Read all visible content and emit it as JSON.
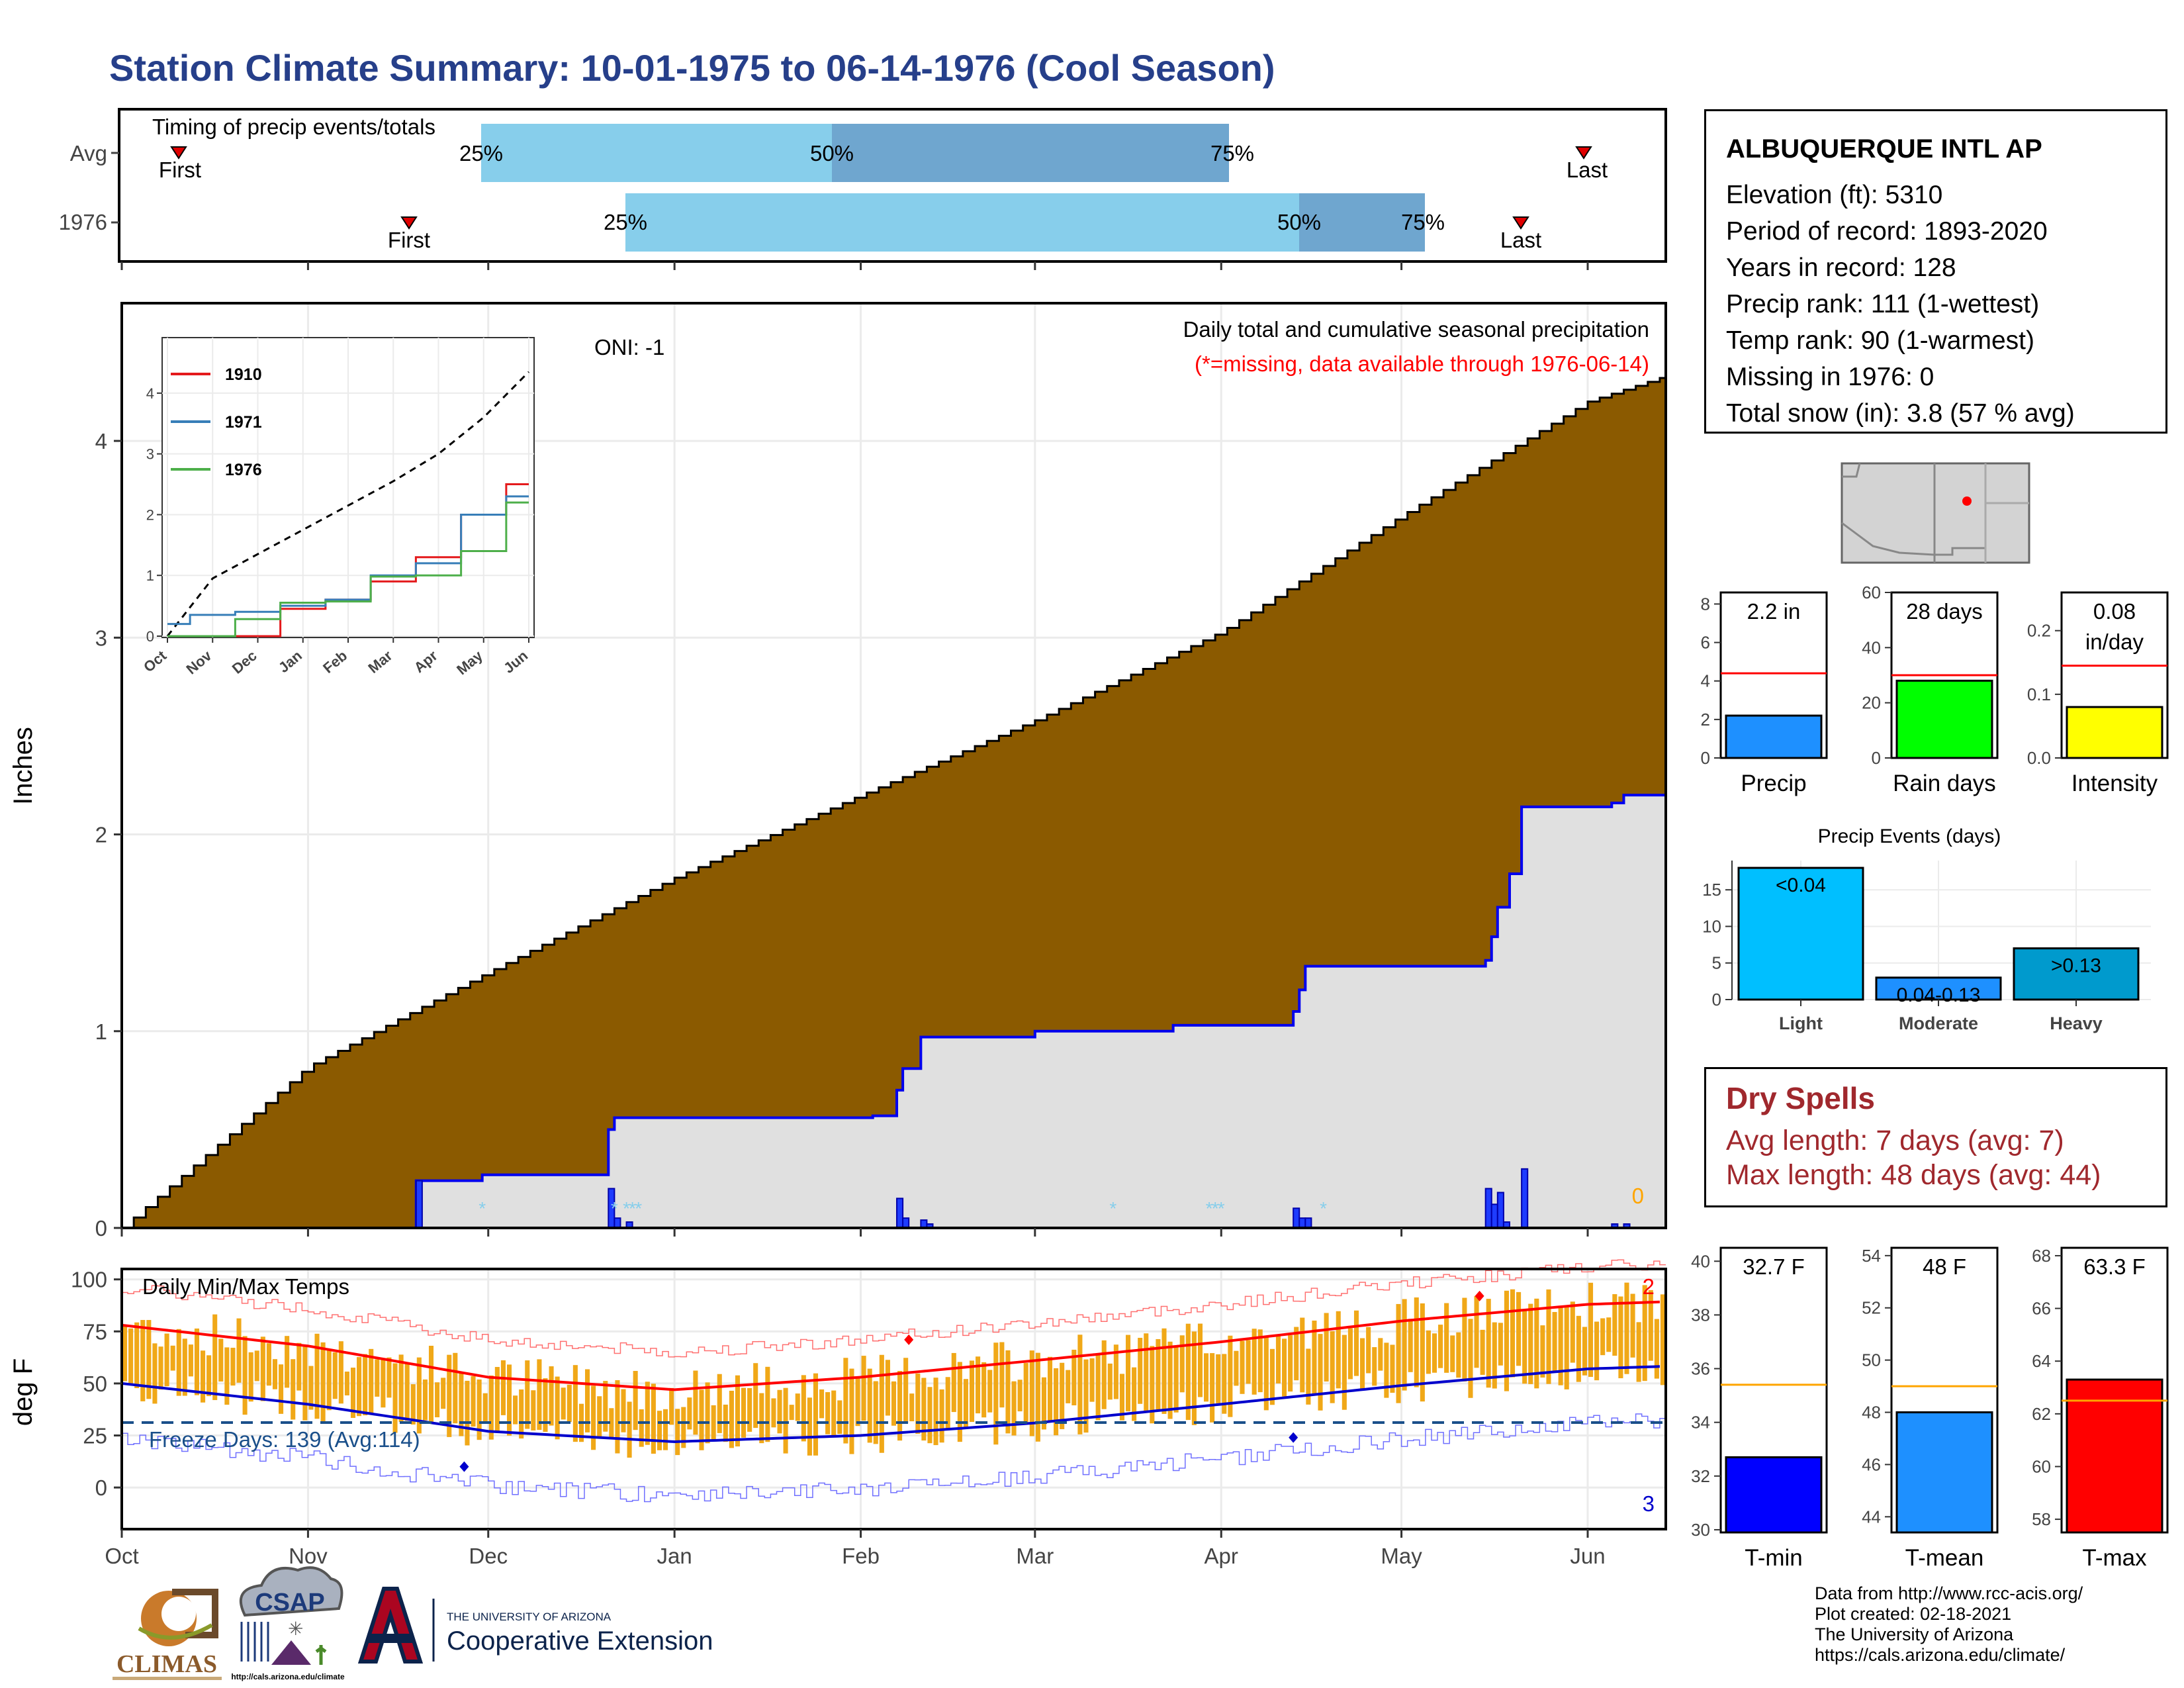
{
  "title": "Station Climate Summary: 10-01-1975 to 06-14-1976 (Cool Season)",
  "station": {
    "name": "ALBUQUERQUE INTL AP",
    "lines": [
      "Elevation (ft): 5310",
      "Period of record: 1893-2020",
      "Years in record: 128",
      "Precip rank: 111 (1-wettest)",
      "Temp rank: 90 (1-warmest)",
      "Missing in 1976: 0",
      "Total snow (in): 3.8 (57 % avg)"
    ]
  },
  "timing": {
    "title": "Timing of precip events/totals",
    "rows": [
      {
        "label": "Avg",
        "first_label": "First",
        "last_label": "Last",
        "p25": "25%",
        "p50": "50%",
        "p75": "75%"
      },
      {
        "label": "1976",
        "first_label": "First",
        "last_label": "Last",
        "p25": "25%",
        "p50": "50%",
        "p75": "75%"
      }
    ]
  },
  "main": {
    "oni": "ONI: -1",
    "desc1": "Daily total and cumulative seasonal precipitation",
    "desc2": "(*=missing, data available through 1976-06-14)",
    "ylabel": "Inches",
    "yticks": [
      "0",
      "1",
      "2",
      "3",
      "4"
    ],
    "snow_total": "0",
    "colors": {
      "cumulative_avg": "#8b5a00",
      "cumulative_year": "#e0e0e0",
      "year_line": "#0000ee",
      "daily_bars": "#1e3cff"
    }
  },
  "inset": {
    "yticks": [
      "0",
      "1",
      "2",
      "3",
      "4"
    ],
    "xticks": [
      "Oct",
      "Nov",
      "Dec",
      "Jan",
      "Feb",
      "Mar",
      "Apr",
      "May",
      "Jun"
    ],
    "legend": [
      {
        "name": "1910",
        "color": "#e41a1c"
      },
      {
        "name": "1971",
        "color": "#377eb8"
      },
      {
        "name": "1976",
        "color": "#4daf4a"
      }
    ]
  },
  "temps": {
    "title": "Daily Min/Max Temps",
    "ylabel": "deg F",
    "yticks": [
      "0",
      "25",
      "50",
      "75",
      "100"
    ],
    "freeze": "Freeze Days: 139 (Avg:114)",
    "count_top": "2",
    "count_bottom": "3"
  },
  "months": [
    "Oct",
    "Nov",
    "Dec",
    "Jan",
    "Feb",
    "Mar",
    "Apr",
    "May",
    "Jun"
  ],
  "summary_precip": {
    "precip": {
      "label": "Precip",
      "value_text": "2.2 in",
      "value": 2.2,
      "avg": 4.4,
      "yticks": [
        "0",
        "2",
        "4",
        "6",
        "8"
      ],
      "color": "#1e90ff"
    },
    "rain": {
      "label": "Rain days",
      "value_text": "28 days",
      "value": 28,
      "avg": 30,
      "yticks": [
        "0",
        "20",
        "40",
        "60"
      ],
      "color": "#00ff00"
    },
    "intensity": {
      "label": "Intensity",
      "value_text": "0.08",
      "value_text2": "in/day",
      "value": 0.08,
      "avg": 0.145,
      "yticks": [
        "0.0",
        "0.1",
        "0.2"
      ],
      "color": "#ffff00"
    }
  },
  "events": {
    "title": "Precip Events (days)",
    "yticks": [
      "0",
      "5",
      "10",
      "15"
    ],
    "bars": [
      {
        "label": "Light",
        "inner": "<0.04",
        "value": 18,
        "color": "#00bfff"
      },
      {
        "label": "Moderate",
        "inner": "0.04-0.13",
        "value": 3,
        "color": "#1e90ff"
      },
      {
        "label": "Heavy",
        "inner": ">0.13",
        "value": 7,
        "color": "#009acd"
      }
    ]
  },
  "dry_spells": {
    "title": "Dry Spells",
    "avg": "Avg length: 7 days (avg: 7)",
    "max": "Max length: 48 days (avg: 44)"
  },
  "summary_temp": {
    "tmin": {
      "label": "T-min",
      "value_text": "32.7 F",
      "value": 32.7,
      "avg": 35.4,
      "yticks": [
        "30",
        "32",
        "34",
        "36",
        "38",
        "40"
      ],
      "color": "#0000ff"
    },
    "tmean": {
      "label": "T-mean",
      "value_text": "48 F",
      "value": 48,
      "avg": 49,
      "yticks": [
        "44",
        "46",
        "48",
        "50",
        "52",
        "54"
      ],
      "color": "#1e90ff"
    },
    "tmax": {
      "label": "T-max",
      "value_text": "63.3 F",
      "value": 63.3,
      "avg": 62.5,
      "yticks": [
        "58",
        "60",
        "62",
        "64",
        "66",
        "68"
      ],
      "color": "#ff0000"
    }
  },
  "credits": [
    "Data from http://www.rcc-acis.org/",
    "Plot created: 02-18-2021",
    "The University of Arizona",
    "https://cals.arizona.edu/climate/"
  ],
  "logos": {
    "climas": "CLIMAS",
    "csap": "CSAP",
    "csap_url": "http://cals.arizona.edu/climate",
    "ua_small": "THE UNIVERSITY OF ARIZONA",
    "ua_big": "Cooperative Extension"
  },
  "chart_data": [
    {
      "type": "area",
      "title": "Daily total and cumulative seasonal precipitation",
      "ylabel": "Inches",
      "ylim": [
        0,
        4.7
      ],
      "x": [
        "1975-10-01",
        "1975-11-01",
        "1975-12-01",
        "1976-01-01",
        "1976-02-01",
        "1976-03-01",
        "1976-04-01",
        "1976-05-01",
        "1976-06-01",
        "1976-06-14"
      ],
      "series": [
        {
          "name": "Avg",
          "values": [
            0.0,
            0.82,
            1.3,
            1.78,
            2.2,
            2.58,
            3.03,
            3.62,
            4.2,
            4.33
          ]
        },
        {
          "name": "1976",
          "values": [
            0.0,
            0.0,
            0.27,
            0.56,
            0.57,
            0.97,
            1.0,
            1.3,
            2.21,
            2.21
          ]
        }
      ]
    },
    {
      "type": "line",
      "ylim": [
        0,
        4.5
      ],
      "x": [
        "Oct",
        "Nov",
        "Dec",
        "Jan",
        "Feb",
        "Mar",
        "Apr",
        "May",
        "Jun"
      ],
      "series": [
        {
          "name": "1910",
          "values": [
            0.0,
            0.0,
            0.0,
            0.45,
            0.6,
            0.9,
            1.3,
            2.0,
            2.5
          ]
        },
        {
          "name": "1971",
          "values": [
            0.2,
            0.35,
            0.4,
            0.5,
            0.6,
            1.0,
            1.2,
            2.0,
            2.3
          ]
        },
        {
          "name": "1976",
          "values": [
            0.0,
            0.0,
            0.28,
            0.55,
            0.57,
            0.98,
            1.0,
            1.4,
            2.2
          ]
        }
      ]
    },
    {
      "type": "line",
      "title": "Daily Min/Max Temps",
      "ylabel": "deg F",
      "ylim": [
        -20,
        105
      ],
      "x": [
        "Oct",
        "Nov",
        "Dec",
        "Jan",
        "Feb",
        "Mar",
        "Apr",
        "May",
        "Jun"
      ],
      "series": [
        {
          "name": "Avg max",
          "values": [
            78,
            68,
            53,
            47,
            53,
            61,
            70,
            80,
            88
          ]
        },
        {
          "name": "Avg min",
          "values": [
            50,
            40,
            27,
            22,
            25,
            31,
            40,
            49,
            57
          ]
        }
      ]
    },
    {
      "type": "bar",
      "title": "Precip Events (days)",
      "categories": [
        "Light",
        "Moderate",
        "Heavy"
      ],
      "values": [
        18,
        3,
        7
      ],
      "ylim": [
        0,
        19
      ]
    }
  ]
}
